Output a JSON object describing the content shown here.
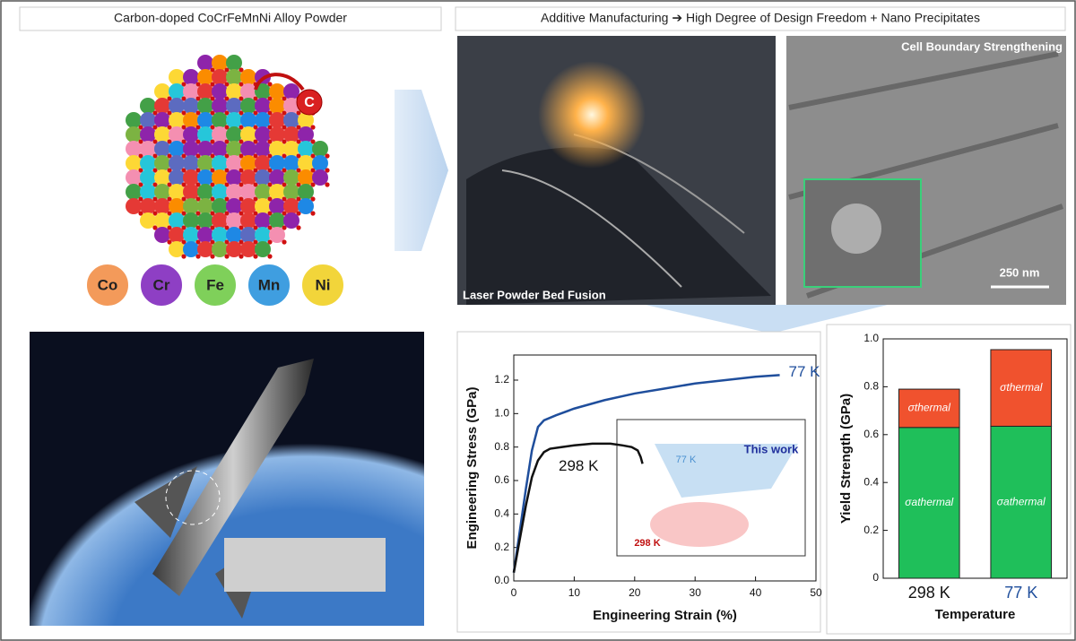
{
  "panels": {
    "powder_title": "Carbon-doped CoCrFeMnNi Alloy Powder",
    "process_title": "Additive Manufacturing ➔ High Degree of Design Freedom + Nano Precipitates",
    "carbon_label": "C",
    "elements": [
      {
        "label": "Co",
        "color": "#f39a5a"
      },
      {
        "label": "Cr",
        "color": "#8e3fc4"
      },
      {
        "label": "Fe",
        "color": "#7fd05a"
      },
      {
        "label": "Mn",
        "color": "#3f9ee0"
      },
      {
        "label": "Ni",
        "color": "#f2d53a"
      }
    ],
    "laser_caption": "Laser Powder Bed Fusion",
    "micro_caption": "Cell Boundary Strengthening",
    "scale_bar": "250 nm",
    "inset_labels": {
      "this_work": "This work",
      "cryo": "77 K",
      "room": "298 K"
    }
  },
  "chart_data": [
    {
      "type": "line",
      "xlabel": "Engineering Strain (%)",
      "ylabel": "Engineering Stress (GPa)",
      "xlim": [
        0,
        50
      ],
      "xticks": [
        0,
        10,
        20,
        30,
        40,
        50
      ],
      "ylim": [
        0,
        1.35
      ],
      "yticks": [
        {
          "value": 0,
          "label": "0.0"
        },
        0.2,
        0.4,
        0.6,
        0.8,
        {
          "value": 1,
          "label": "1.0"
        },
        1.2
      ],
      "series": [
        {
          "name": "77 K",
          "color": "#1f4e9c",
          "x": [
            0,
            1,
            2,
            3,
            4,
            5,
            7,
            10,
            15,
            20,
            25,
            30,
            35,
            40,
            44
          ],
          "values": [
            0.05,
            0.3,
            0.55,
            0.78,
            0.92,
            0.96,
            0.99,
            1.03,
            1.08,
            1.12,
            1.15,
            1.18,
            1.2,
            1.22,
            1.23
          ]
        },
        {
          "name": "298 K",
          "color": "#111111",
          "x": [
            0,
            1,
            2,
            3,
            4,
            5,
            6,
            8,
            10,
            13,
            16,
            18,
            19.5,
            20.5,
            21,
            21.3
          ],
          "values": [
            0.05,
            0.25,
            0.45,
            0.62,
            0.72,
            0.77,
            0.79,
            0.8,
            0.81,
            0.82,
            0.82,
            0.81,
            0.8,
            0.78,
            0.74,
            0.7
          ]
        }
      ]
    },
    {
      "type": "stacked_bar",
      "xlabel": "Temperature",
      "ylabel": "Yield Strength (GPa)",
      "categories": [
        "298 K",
        "77 K"
      ],
      "category_colors": [
        "#111111",
        "#1f4e9c"
      ],
      "ylim": [
        0,
        1
      ],
      "yticks": [
        0,
        0.2,
        0.4,
        0.6,
        0.8,
        {
          "value": 1,
          "label": "1.0"
        }
      ],
      "series": [
        {
          "name": "σathermal",
          "color": "#1fbf5a",
          "values": [
            0.63,
            0.635
          ]
        },
        {
          "name": "σthermal",
          "color": "#f0522e",
          "values": [
            0.16,
            0.32
          ]
        }
      ]
    }
  ]
}
